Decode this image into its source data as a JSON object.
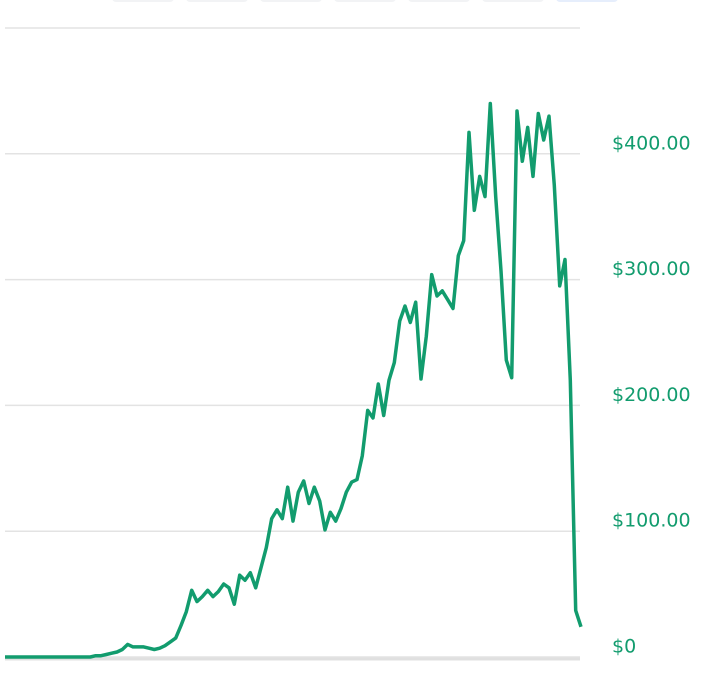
{
  "chart_data": {
    "type": "line",
    "values": [
      0,
      0,
      0,
      0,
      0,
      0,
      0,
      0,
      0,
      0,
      0,
      0,
      0,
      0,
      0,
      0,
      0,
      1,
      1,
      2,
      3,
      4,
      6,
      10,
      8,
      8,
      8,
      7,
      6,
      7,
      9,
      12,
      15,
      25,
      36,
      53,
      44,
      48,
      53,
      48,
      52,
      58,
      55,
      42,
      65,
      61,
      67,
      55,
      71,
      87,
      110,
      117,
      110,
      135,
      108,
      131,
      140,
      122,
      135,
      124,
      101,
      115,
      108,
      118,
      131,
      139,
      141,
      160,
      196,
      190,
      217,
      192,
      220,
      234,
      267,
      279,
      266,
      282,
      221,
      255,
      304,
      287,
      291,
      284,
      277,
      319,
      331,
      417,
      355,
      382,
      366,
      440,
      366,
      307,
      236,
      222,
      434,
      394,
      421,
      382,
      432,
      411,
      430,
      375,
      295,
      316,
      220,
      37,
      24
    ],
    "color": "#129c6e",
    "ylim": [
      0,
      500
    ],
    "yticks": [
      {
        "value": 0,
        "label": "$0"
      },
      {
        "value": 100,
        "label": "$100.00"
      },
      {
        "value": 200,
        "label": "$200.00"
      },
      {
        "value": 300,
        "label": "$300.00"
      },
      {
        "value": 400,
        "label": "$400.00"
      }
    ],
    "grid": true
  }
}
